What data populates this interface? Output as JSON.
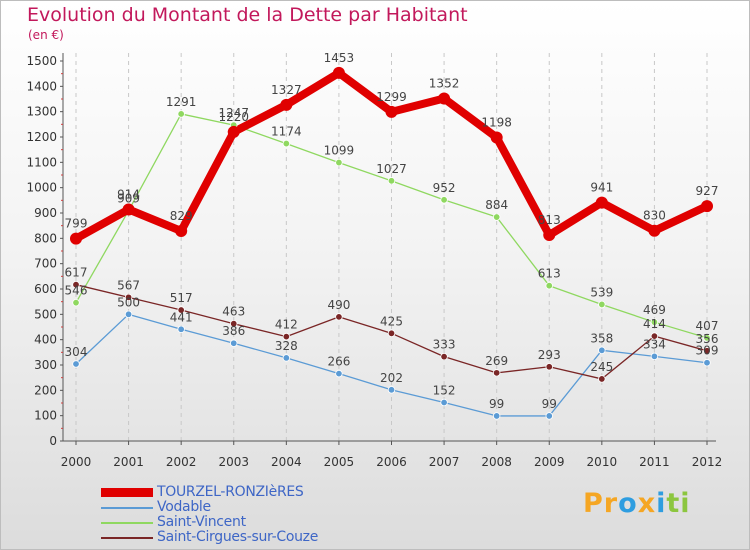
{
  "chart_data": {
    "type": "line",
    "title": "Evolution du Montant de la Dette par Habitant",
    "unit_label": "(en €)",
    "xlabel": "",
    "ylabel": "",
    "categories": [
      "2000",
      "2001",
      "2002",
      "2003",
      "2004",
      "2005",
      "2006",
      "2007",
      "2008",
      "2009",
      "2010",
      "2011",
      "2012"
    ],
    "ylim": [
      0,
      1500
    ],
    "yticks": [
      0,
      100,
      200,
      300,
      400,
      500,
      600,
      700,
      800,
      900,
      1000,
      1100,
      1200,
      1300,
      1400,
      1500
    ],
    "grid": "vertical-dashed",
    "series": [
      {
        "name": "TOURZEL-RONZIèRES",
        "color": "#e00000",
        "values": [
          799,
          914,
          829,
          1220,
          1327,
          1453,
          1299,
          1352,
          1198,
          813,
          941,
          830,
          927
        ]
      },
      {
        "name": "Vodable",
        "color": "#5b9bd5",
        "values": [
          304,
          500,
          441,
          386,
          328,
          266,
          202,
          152,
          99,
          99,
          358,
          334,
          309
        ]
      },
      {
        "name": "Saint-Vincent",
        "color": "#8fd860",
        "values": [
          546,
          909,
          1291,
          1247,
          1174,
          1099,
          1027,
          952,
          884,
          613,
          539,
          469,
          407
        ]
      },
      {
        "name": "Saint-Cirgues-sur-Couze",
        "color": "#7a2626",
        "values": [
          617,
          567,
          517,
          463,
          412,
          490,
          425,
          333,
          269,
          293,
          245,
          414,
          356
        ]
      }
    ]
  },
  "logo": {
    "letters": [
      "P",
      "r",
      "o",
      "x",
      "i",
      "t",
      "i"
    ],
    "colors": [
      "#f5a623",
      "#f5a623",
      "#2e9de0",
      "#f5a623",
      "#2e9de0",
      "#8cc63f",
      "#8cc63f"
    ]
  }
}
